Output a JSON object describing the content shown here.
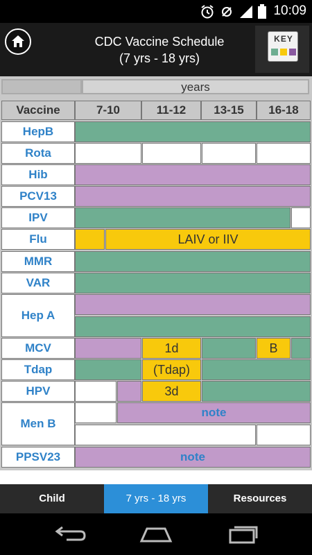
{
  "status_bar": {
    "time": "10:09",
    "icons": [
      "alarm-icon",
      "data-saver-icon",
      "signal-icon",
      "battery-icon"
    ]
  },
  "header": {
    "title_line1": "CDC Vaccine Schedule",
    "title_line2": "(7 yrs - 18 yrs)",
    "key_label": "KEY",
    "home_icon": "home-icon"
  },
  "table": {
    "years_label": "years",
    "vaccine_header": "Vaccine",
    "age_columns": [
      "7-10",
      "11-12",
      "13-15",
      "16-18"
    ],
    "vaccines": [
      "HepB",
      "Rota",
      "Hib",
      "PCV13",
      "IPV",
      "Flu",
      "MMR",
      "VAR",
      "Hep A",
      "MCV",
      "Tdap",
      "HPV",
      "Men B",
      "PPSV23"
    ],
    "cell_labels": {
      "flu": "LAIV or IIV",
      "mcv_dose": "1d",
      "mcv_booster": "B",
      "tdap": "(Tdap)",
      "hpv": "3d",
      "menb_note": "note",
      "ppsv_note": "note"
    }
  },
  "tabs": [
    {
      "label": "Child",
      "active": false
    },
    {
      "label": "7 yrs - 18 yrs",
      "active": true
    },
    {
      "label": "Resources",
      "active": false
    }
  ],
  "colors": {
    "green": "#6fae92",
    "purple": "#c19ac9",
    "yellow": "#f8c90c",
    "accent": "#2c8fd8",
    "vaccine_text": "#2f82c8"
  }
}
